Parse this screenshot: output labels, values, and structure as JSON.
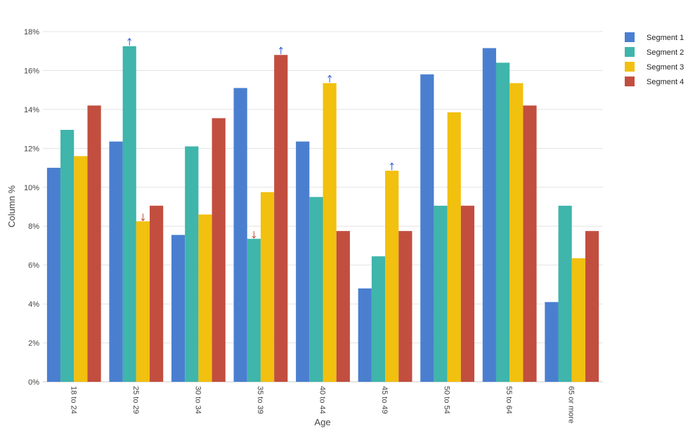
{
  "chart_data": {
    "type": "bar",
    "title": "",
    "xlabel": "Age",
    "ylabel": "Column %",
    "ylim": [
      0,
      18
    ],
    "ytick_values": [
      0,
      2,
      4,
      6,
      8,
      10,
      12,
      14,
      16,
      18
    ],
    "ytick_labels": [
      "0%",
      "2%",
      "4%",
      "6%",
      "8%",
      "10%",
      "12%",
      "14%",
      "16%",
      "18%"
    ],
    "categories": [
      "18 to 24",
      "25 to 29",
      "30 to 34",
      "35 to 39",
      "40 to 44",
      "45 to 49",
      "50 to 54",
      "55 to 64",
      "65 or more"
    ],
    "series": [
      {
        "name": "Segment 1",
        "color": "#4a7fd0",
        "values": [
          11.0,
          12.35,
          7.55,
          15.1,
          12.35,
          4.8,
          15.8,
          17.15,
          4.1
        ]
      },
      {
        "name": "Segment 2",
        "color": "#3fb5ab",
        "values": [
          12.95,
          17.25,
          12.1,
          7.35,
          9.5,
          6.45,
          9.05,
          16.4,
          9.05
        ]
      },
      {
        "name": "Segment 3",
        "color": "#f2c00e",
        "values": [
          11.6,
          8.25,
          8.6,
          9.75,
          15.35,
          10.85,
          13.85,
          15.35,
          6.35
        ]
      },
      {
        "name": "Segment 4",
        "color": "#c24e3f",
        "values": [
          14.2,
          9.05,
          13.55,
          16.8,
          7.75,
          7.75,
          9.05,
          14.2,
          7.75
        ]
      }
    ],
    "significance_markers": [
      {
        "category": "25 to 29",
        "series": "Segment 2",
        "direction": "up",
        "color": "#2a5bd7"
      },
      {
        "category": "25 to 29",
        "series": "Segment 3",
        "direction": "down",
        "color": "#c24e3f"
      },
      {
        "category": "35 to 39",
        "series": "Segment 2",
        "direction": "down",
        "color": "#c24e3f"
      },
      {
        "category": "35 to 39",
        "series": "Segment 4",
        "direction": "up",
        "color": "#2a5bd7"
      },
      {
        "category": "40 to 44",
        "series": "Segment 3",
        "direction": "up",
        "color": "#2a5bd7"
      },
      {
        "category": "45 to 49",
        "series": "Segment 3",
        "direction": "up",
        "color": "#2a5bd7"
      }
    ],
    "grid": true,
    "legend_position": "right"
  }
}
